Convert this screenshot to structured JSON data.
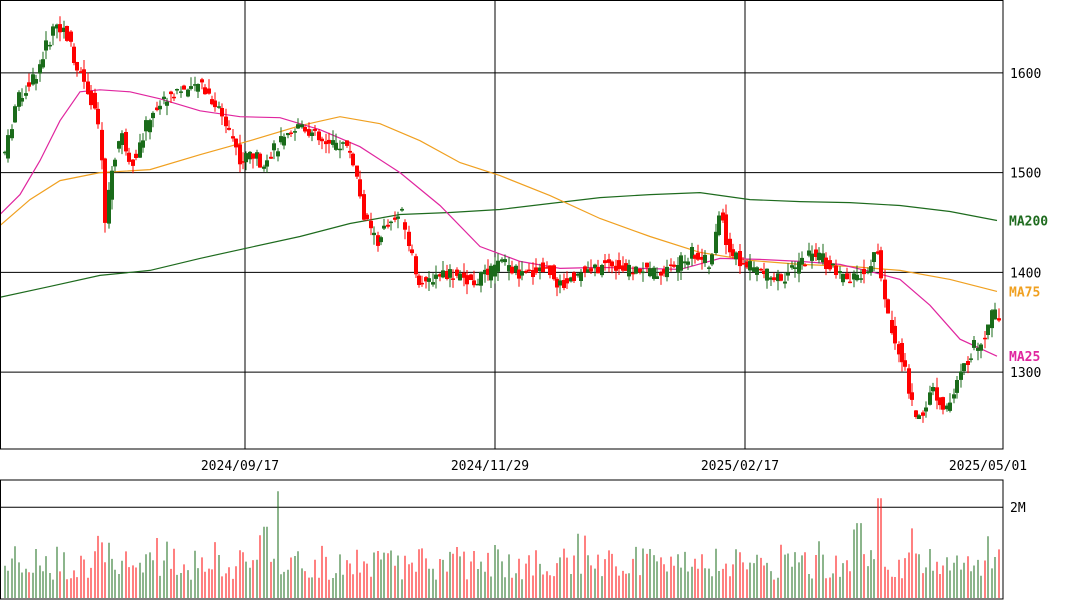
{
  "chart_data": {
    "type": "candlestick",
    "price_axis": {
      "ticks": [
        1300,
        1400,
        1500,
        1600
      ],
      "ylim": [
        1223,
        1672
      ]
    },
    "date_ticks": [
      "2024/09/17",
      "2024/11/29",
      "2025/02/17",
      "2025/05/01"
    ],
    "volume_axis": {
      "ticks": [
        {
          "value": 2000000,
          "label": "2M"
        }
      ],
      "ylim": [
        0,
        2600000
      ]
    },
    "colors": {
      "up": "#1a6b1a",
      "down": "#ff0000",
      "ma25": "#e0269f",
      "ma75": "#f0a020",
      "ma200": "#1e6b1e",
      "volume_up": "#1a6b1a",
      "volume_down": "#ff0000"
    },
    "moving_averages": [
      {
        "name": "MA200",
        "label": "MA200",
        "color": "#1e6b1e",
        "points": [
          [
            0,
            1375
          ],
          [
            50,
            1386
          ],
          [
            100,
            1397
          ],
          [
            150,
            1402
          ],
          [
            200,
            1414
          ],
          [
            250,
            1425
          ],
          [
            300,
            1436
          ],
          [
            350,
            1449
          ],
          [
            400,
            1458
          ],
          [
            450,
            1460
          ],
          [
            500,
            1463
          ],
          [
            550,
            1469
          ],
          [
            600,
            1475
          ],
          [
            650,
            1478
          ],
          [
            700,
            1480
          ],
          [
            750,
            1473
          ],
          [
            800,
            1471
          ],
          [
            850,
            1470
          ],
          [
            900,
            1467
          ],
          [
            950,
            1461
          ],
          [
            997,
            1452
          ]
        ]
      },
      {
        "name": "MA75",
        "label": "MA75",
        "color": "#f0a020",
        "points": [
          [
            0,
            1447
          ],
          [
            30,
            1473
          ],
          [
            60,
            1492
          ],
          [
            100,
            1500
          ],
          [
            150,
            1503
          ],
          [
            200,
            1518
          ],
          [
            250,
            1532
          ],
          [
            300,
            1547
          ],
          [
            340,
            1556
          ],
          [
            380,
            1549
          ],
          [
            420,
            1532
          ],
          [
            460,
            1510
          ],
          [
            500,
            1497
          ],
          [
            550,
            1477
          ],
          [
            600,
            1454
          ],
          [
            650,
            1436
          ],
          [
            700,
            1420
          ],
          [
            750,
            1412
          ],
          [
            800,
            1408
          ],
          [
            850,
            1406
          ],
          [
            900,
            1402
          ],
          [
            950,
            1393
          ],
          [
            997,
            1381
          ]
        ]
      },
      {
        "name": "MA25",
        "label": "MA25",
        "color": "#e0269f",
        "points": [
          [
            0,
            1458
          ],
          [
            20,
            1478
          ],
          [
            40,
            1512
          ],
          [
            60,
            1552
          ],
          [
            80,
            1581
          ],
          [
            100,
            1583
          ],
          [
            130,
            1581
          ],
          [
            160,
            1574
          ],
          [
            200,
            1562
          ],
          [
            240,
            1556
          ],
          [
            280,
            1555
          ],
          [
            320,
            1543
          ],
          [
            360,
            1526
          ],
          [
            400,
            1500
          ],
          [
            440,
            1467
          ],
          [
            480,
            1426
          ],
          [
            520,
            1411
          ],
          [
            560,
            1404
          ],
          [
            600,
            1405
          ],
          [
            640,
            1404
          ],
          [
            680,
            1403
          ],
          [
            720,
            1414
          ],
          [
            760,
            1413
          ],
          [
            800,
            1411
          ],
          [
            840,
            1408
          ],
          [
            870,
            1401
          ],
          [
            900,
            1393
          ],
          [
            930,
            1367
          ],
          [
            960,
            1333
          ],
          [
            997,
            1316
          ]
        ]
      }
    ]
  }
}
